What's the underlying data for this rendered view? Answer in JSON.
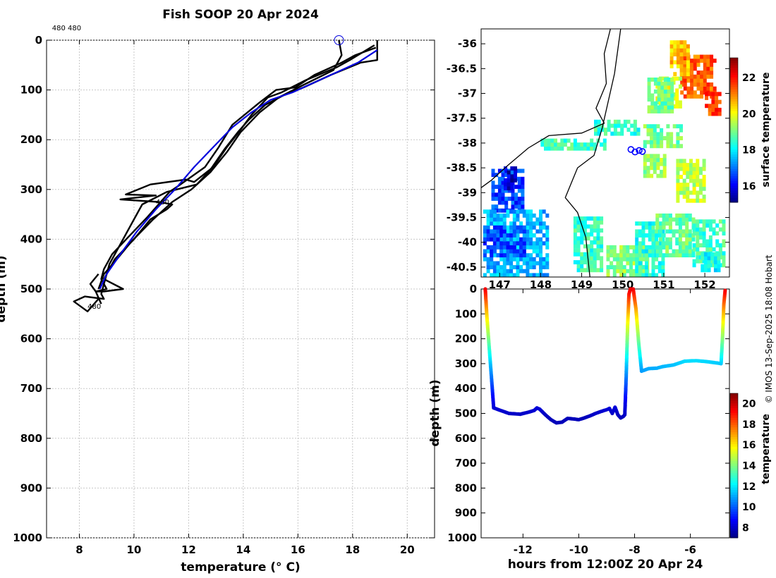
{
  "colors": {
    "background": "#ffffff",
    "profile": "#000000",
    "mean_profile": "#0000dd",
    "grid": "#c8c8c8",
    "coast": "#000000"
  },
  "figure": {
    "title": "Fish SOOP 20 Apr 2024",
    "credit": "© IMOS 13-Sep-2025 18:08 Hobart"
  },
  "chart_data": [
    {
      "type": "line",
      "name": "temperature-depth-profile",
      "xlabel": "temperature (° C)",
      "ylabel": "depth (m)",
      "xlim": [
        6.8,
        21
      ],
      "ylim": [
        1000,
        0
      ],
      "xticks": [
        8,
        10,
        12,
        14,
        16,
        18,
        20
      ],
      "yticks": [
        0,
        100,
        200,
        300,
        400,
        500,
        600,
        700,
        800,
        900,
        1000
      ],
      "grid": true,
      "annotations": [
        {
          "text": "480 480",
          "x": 7.0,
          "y": -20
        },
        {
          "text": "480",
          "x": 8.3,
          "y": 540
        },
        {
          "text": "480",
          "x": 10.8,
          "y": 330
        }
      ],
      "series": [
        {
          "name": "profile-1",
          "style": "black",
          "points": [
            [
              18.9,
              0
            ],
            [
              18.9,
              40
            ],
            [
              18.3,
              45
            ],
            [
              17.2,
              70
            ],
            [
              16.2,
              95
            ],
            [
              15.5,
              110
            ],
            [
              14.8,
              130
            ],
            [
              14.2,
              160
            ],
            [
              13.8,
              185
            ],
            [
              13.3,
              220
            ],
            [
              12.8,
              260
            ],
            [
              12.3,
              290
            ],
            [
              11.2,
              305
            ],
            [
              10.3,
              330
            ],
            [
              9.9,
              370
            ],
            [
              9.5,
              410
            ],
            [
              9.1,
              450
            ],
            [
              8.9,
              490
            ],
            [
              8.8,
              510
            ],
            [
              8.9,
              520
            ],
            [
              8.2,
              515
            ],
            [
              7.8,
              525
            ],
            [
              8.3,
              545
            ],
            [
              8.7,
              520
            ]
          ]
        },
        {
          "name": "profile-2",
          "style": "black",
          "points": [
            [
              18.8,
              10
            ],
            [
              17.9,
              40
            ],
            [
              17.4,
              55
            ],
            [
              16.3,
              80
            ],
            [
              15.4,
              105
            ],
            [
              14.9,
              115
            ],
            [
              14.3,
              150
            ],
            [
              13.9,
              180
            ],
            [
              13.4,
              215
            ],
            [
              12.9,
              255
            ],
            [
              12.2,
              285
            ],
            [
              11.9,
              280
            ],
            [
              10.6,
              290
            ],
            [
              9.7,
              310
            ],
            [
              10.8,
              312
            ],
            [
              9.5,
              320
            ],
            [
              10.9,
              325
            ],
            [
              11.4,
              330
            ],
            [
              11.2,
              340
            ],
            [
              10.6,
              360
            ],
            [
              10.0,
              400
            ],
            [
              9.3,
              440
            ],
            [
              8.9,
              480
            ],
            [
              9.6,
              500
            ],
            [
              8.9,
              505
            ],
            [
              8.6,
              505
            ],
            [
              8.4,
              490
            ],
            [
              8.7,
              470
            ]
          ]
        },
        {
          "name": "profile-3",
          "style": "black",
          "points": [
            [
              18.85,
              15
            ],
            [
              18.1,
              30
            ],
            [
              17.6,
              45
            ],
            [
              16.6,
              70
            ],
            [
              15.9,
              95
            ],
            [
              15.2,
              100
            ],
            [
              14.6,
              125
            ],
            [
              13.6,
              170
            ],
            [
              13.1,
              215
            ],
            [
              12.6,
              255
            ],
            [
              11.7,
              290
            ],
            [
              11.3,
              305
            ],
            [
              10.5,
              355
            ],
            [
              9.8,
              395
            ],
            [
              9.2,
              430
            ],
            [
              8.9,
              460
            ],
            [
              8.8,
              480
            ],
            [
              9.0,
              500
            ],
            [
              8.6,
              505
            ],
            [
              8.8,
              530
            ]
          ]
        },
        {
          "name": "profile-4",
          "style": "black",
          "points": [
            [
              17.5,
              0
            ],
            [
              17.6,
              30
            ],
            [
              17.3,
              60
            ],
            [
              16.2,
              90
            ],
            [
              15.3,
              115
            ],
            [
              14.6,
              145
            ],
            [
              13.9,
              185
            ],
            [
              13.4,
              225
            ],
            [
              12.8,
              265
            ],
            [
              12.1,
              300
            ],
            [
              11.4,
              325
            ],
            [
              10.7,
              360
            ],
            [
              9.9,
              405
            ],
            [
              9.3,
              445
            ],
            [
              8.9,
              470
            ],
            [
              8.7,
              500
            ]
          ]
        },
        {
          "name": "mean-profile",
          "style": "blue",
          "points": [
            [
              18.9,
              20
            ],
            [
              18.2,
              45
            ],
            [
              17.4,
              65
            ],
            [
              16.6,
              85
            ],
            [
              15.8,
              105
            ],
            [
              15.0,
              120
            ],
            [
              14.3,
              145
            ],
            [
              13.6,
              175
            ],
            [
              12.9,
              215
            ],
            [
              12.2,
              255
            ],
            [
              11.5,
              300
            ],
            [
              10.8,
              340
            ],
            [
              10.1,
              385
            ],
            [
              9.5,
              430
            ],
            [
              9.0,
              470
            ],
            [
              8.75,
              500
            ]
          ]
        }
      ],
      "start_marker": {
        "x": 17.5,
        "y": 0
      }
    },
    {
      "type": "heatmap",
      "name": "surface-temperature-map",
      "xticks": [
        147,
        148,
        149,
        150,
        151,
        152
      ],
      "xlim": [
        146.55,
        152.6
      ],
      "yticks": [
        -36,
        -36.5,
        -37,
        -37.5,
        -38,
        -38.5,
        -39,
        -39.5,
        -40,
        -40.5
      ],
      "ylim": [
        -40.7,
        -35.7
      ],
      "colorbar": {
        "label": "surface temperature",
        "range": [
          15.1,
          23.1
        ],
        "ticks": [
          16,
          18,
          20,
          22
        ]
      },
      "track": {
        "x": 150.3,
        "y": -38.15
      },
      "patches": [
        {
          "lon": [
            151.4,
            152.25
          ],
          "lat": [
            -37.1,
            -36.3
          ],
          "value": 21.4
        },
        {
          "lon": [
            151.15,
            151.6
          ],
          "lat": [
            -36.65,
            -35.95
          ],
          "value": 20.5
        },
        {
          "lon": [
            150.8,
            151.4
          ],
          "lat": [
            -37.3,
            -36.7
          ],
          "value": 19.8
        },
        {
          "lon": [
            152.0,
            152.35
          ],
          "lat": [
            -37.45,
            -37.05
          ],
          "value": 21.6
        },
        {
          "lon": [
            150.6,
            151.2
          ],
          "lat": [
            -37.4,
            -36.7
          ],
          "value": 19.0
        },
        {
          "lon": [
            149.3,
            150.4
          ],
          "lat": [
            -37.85,
            -37.6
          ],
          "value": 18.5
        },
        {
          "lon": [
            148.0,
            149.6
          ],
          "lat": [
            -38.15,
            -37.95
          ],
          "value": 18.6
        },
        {
          "lon": [
            150.5,
            151.4
          ],
          "lat": [
            -38.1,
            -37.7
          ],
          "value": 19.0
        },
        {
          "lon": [
            151.3,
            152.0
          ],
          "lat": [
            -39.2,
            -38.4
          ],
          "value": 19.6
        },
        {
          "lon": [
            150.5,
            151.0
          ],
          "lat": [
            -38.7,
            -38.3
          ],
          "value": 19.3
        },
        {
          "lon": [
            146.8,
            147.6
          ],
          "lat": [
            -39.4,
            -38.55
          ],
          "value": 16.6
        },
        {
          "lon": [
            147.1,
            147.4
          ],
          "lat": [
            -38.95,
            -38.55
          ],
          "value": 15.7
        },
        {
          "lon": [
            146.6,
            148.2
          ],
          "lat": [
            -40.7,
            -39.4
          ],
          "value": 17.5
        },
        {
          "lon": [
            146.6,
            147.6
          ],
          "lat": [
            -40.3,
            -39.7
          ],
          "value": 16.6
        },
        {
          "lon": [
            148.8,
            149.5
          ],
          "lat": [
            -40.6,
            -39.5
          ],
          "value": 18.5
        },
        {
          "lon": [
            149.6,
            150.6
          ],
          "lat": [
            -40.7,
            -40.1
          ],
          "value": 19.2
        },
        {
          "lon": [
            150.3,
            151.0
          ],
          "lat": [
            -40.7,
            -39.6
          ],
          "value": 18.4
        },
        {
          "lon": [
            150.8,
            151.7
          ],
          "lat": [
            -40.3,
            -39.5
          ],
          "value": 18.9
        },
        {
          "lon": [
            151.7,
            152.5
          ],
          "lat": [
            -40.5,
            -39.6
          ],
          "value": 18.6
        },
        {
          "lon": [
            151.9,
            152.35
          ],
          "lat": [
            -40.6,
            -40.25
          ],
          "value": 18.2
        }
      ],
      "coast": [
        [
          [
            149.7,
            -35.7
          ],
          [
            149.55,
            -36.2
          ],
          [
            149.6,
            -36.8
          ],
          [
            149.35,
            -37.3
          ],
          [
            149.55,
            -37.6
          ],
          [
            149.0,
            -37.8
          ],
          [
            148.2,
            -37.85
          ],
          [
            147.7,
            -38.1
          ],
          [
            147.2,
            -38.45
          ],
          [
            146.8,
            -38.75
          ],
          [
            146.55,
            -38.9
          ]
        ],
        [
          [
            149.95,
            -35.7
          ],
          [
            149.8,
            -36.6
          ],
          [
            149.5,
            -37.7
          ],
          [
            149.3,
            -38.25
          ],
          [
            148.9,
            -38.5
          ],
          [
            148.6,
            -39.1
          ],
          [
            148.9,
            -39.4
          ],
          [
            149.1,
            -39.9
          ],
          [
            149.2,
            -40.7
          ]
        ]
      ]
    },
    {
      "type": "scatter",
      "name": "depth-time-track",
      "xlabel": "hours from 12:00Z 20 Apr 24",
      "ylabel": "depth (m)",
      "xlim": [
        -13.5,
        -4.6
      ],
      "ylim": [
        1000,
        0
      ],
      "xticks": [
        -12,
        -10,
        -8,
        -6
      ],
      "yticks": [
        0,
        100,
        200,
        300,
        400,
        500,
        600,
        700,
        800,
        900,
        1000
      ],
      "colorbar": {
        "label": "temperature",
        "range": [
          7,
          21
        ],
        "ticks": [
          8,
          10,
          12,
          14,
          16,
          18,
          20
        ]
      },
      "points": [
        [
          -13.35,
          0
        ],
        [
          -13.3,
          100
        ],
        [
          -13.2,
          250
        ],
        [
          -13.1,
          400
        ],
        [
          -13.05,
          478
        ],
        [
          -12.8,
          488
        ],
        [
          -12.5,
          500
        ],
        [
          -12.1,
          503
        ],
        [
          -11.8,
          495
        ],
        [
          -11.6,
          488
        ],
        [
          -11.5,
          478
        ],
        [
          -11.4,
          483
        ],
        [
          -11.2,
          505
        ],
        [
          -11.0,
          525
        ],
        [
          -10.8,
          538
        ],
        [
          -10.6,
          535
        ],
        [
          -10.4,
          520
        ],
        [
          -10.2,
          522
        ],
        [
          -10.0,
          525
        ],
        [
          -9.8,
          518
        ],
        [
          -9.6,
          510
        ],
        [
          -9.4,
          500
        ],
        [
          -9.2,
          492
        ],
        [
          -9.0,
          485
        ],
        [
          -8.9,
          480
        ],
        [
          -8.8,
          500
        ],
        [
          -8.7,
          475
        ],
        [
          -8.6,
          505
        ],
        [
          -8.5,
          518
        ],
        [
          -8.4,
          512
        ],
        [
          -8.35,
          505
        ],
        [
          -8.3,
          350
        ],
        [
          -8.25,
          150
        ],
        [
          -8.2,
          20
        ],
        [
          -8.15,
          0
        ],
        [
          -8.05,
          0
        ],
        [
          -7.95,
          80
        ],
        [
          -7.85,
          220
        ],
        [
          -7.75,
          330
        ],
        [
          -7.5,
          320
        ],
        [
          -7.2,
          318
        ],
        [
          -7.0,
          312
        ],
        [
          -6.6,
          305
        ],
        [
          -6.2,
          290
        ],
        [
          -5.8,
          288
        ],
        [
          -5.4,
          292
        ],
        [
          -5.0,
          298
        ],
        [
          -4.9,
          300
        ],
        [
          -4.85,
          200
        ],
        [
          -4.8,
          60
        ],
        [
          -4.75,
          0
        ]
      ]
    }
  ]
}
